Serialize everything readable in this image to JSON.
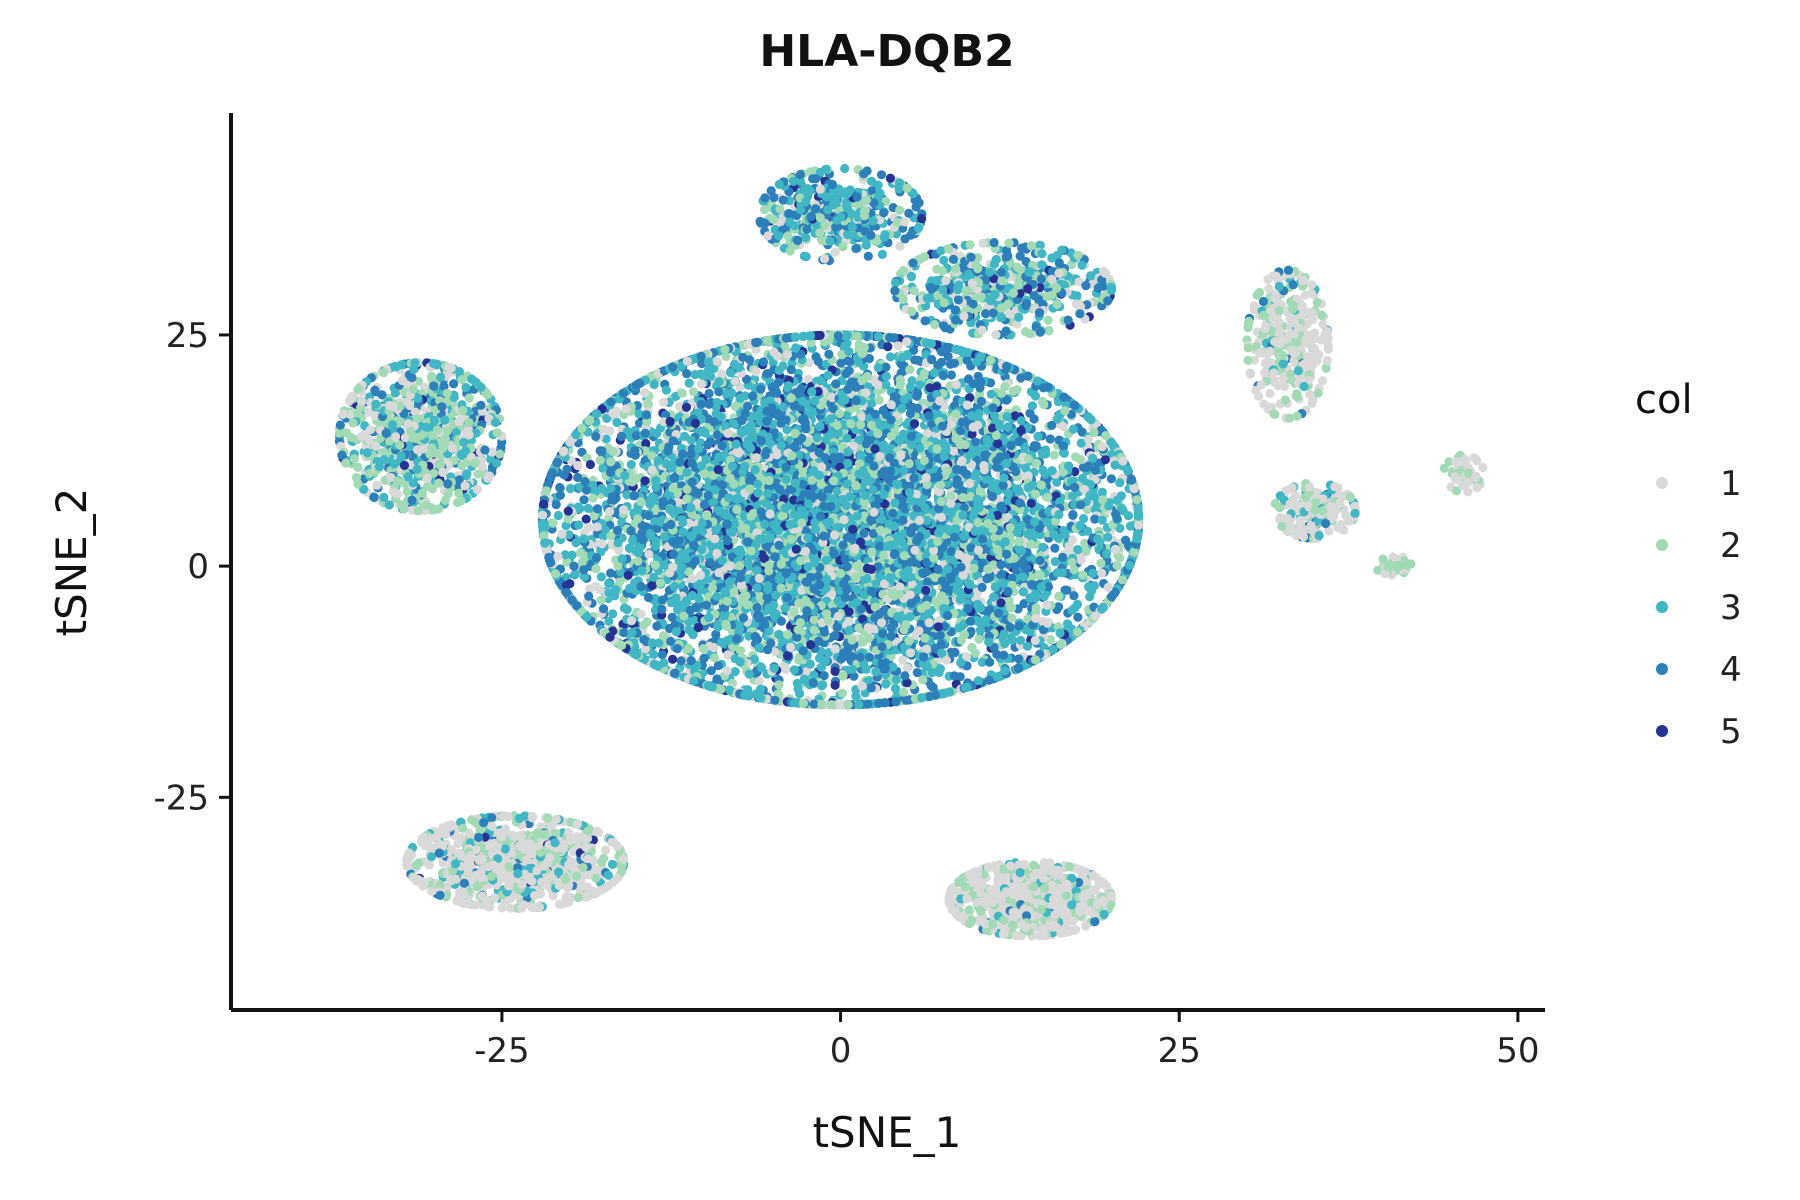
{
  "chart_data": {
    "type": "scatter",
    "title": "HLA-DQB2",
    "xlabel": "tSNE_1",
    "ylabel": "tSNE_2",
    "xlim": [
      -45,
      52
    ],
    "ylim": [
      -48,
      49
    ],
    "x_ticks": [
      -25,
      0,
      25,
      50
    ],
    "y_ticks": [
      -25,
      0,
      25
    ],
    "x_tick_labels": [
      "-25",
      "0",
      "25",
      "50"
    ],
    "y_tick_labels": [
      "-25",
      "0",
      "25"
    ],
    "grid": false,
    "legend": {
      "title": "col",
      "placement": "right",
      "entries": [
        {
          "label": "1",
          "color": "#d9d9d9"
        },
        {
          "label": "2",
          "color": "#a1dab4"
        },
        {
          "label": "3",
          "color": "#41b6c4"
        },
        {
          "label": "4",
          "color": "#2c7fb8"
        },
        {
          "label": "5",
          "color": "#253494"
        }
      ]
    },
    "clusters": [
      {
        "name": "main",
        "center": [
          0,
          5
        ],
        "spread": [
          22,
          20
        ],
        "count": 8000,
        "weights": [
          0.12,
          0.18,
          0.35,
          0.3,
          0.05
        ]
      },
      {
        "name": "upper-left",
        "center": [
          -31,
          14
        ],
        "spread": [
          6,
          8
        ],
        "count": 800,
        "weights": [
          0.25,
          0.3,
          0.25,
          0.17,
          0.03
        ]
      },
      {
        "name": "top-bump",
        "center": [
          0,
          38
        ],
        "spread": [
          6,
          5
        ],
        "count": 400,
        "weights": [
          0.12,
          0.18,
          0.35,
          0.3,
          0.05
        ]
      },
      {
        "name": "upper-right-arm",
        "center": [
          12,
          30
        ],
        "spread": [
          8,
          5
        ],
        "count": 500,
        "weights": [
          0.15,
          0.25,
          0.3,
          0.25,
          0.05
        ]
      },
      {
        "name": "lower-left",
        "center": [
          -24,
          -32
        ],
        "spread": [
          8,
          5
        ],
        "count": 900,
        "weights": [
          0.6,
          0.22,
          0.1,
          0.07,
          0.01
        ]
      },
      {
        "name": "bottom-center",
        "center": [
          14,
          -36
        ],
        "spread": [
          6,
          4
        ],
        "count": 700,
        "weights": [
          0.72,
          0.2,
          0.05,
          0.03,
          0
        ]
      },
      {
        "name": "far-right-top",
        "center": [
          33,
          24
        ],
        "spread": [
          3,
          8
        ],
        "count": 300,
        "weights": [
          0.65,
          0.25,
          0.07,
          0.03,
          0
        ]
      },
      {
        "name": "right-mid",
        "center": [
          35,
          6
        ],
        "spread": [
          3,
          3
        ],
        "count": 180,
        "weights": [
          0.62,
          0.2,
          0.1,
          0.08,
          0
        ]
      },
      {
        "name": "far-right-small",
        "center": [
          46,
          10
        ],
        "spread": [
          1.5,
          2
        ],
        "count": 50,
        "weights": [
          0.5,
          0.5,
          0,
          0,
          0
        ]
      },
      {
        "name": "far-right-tiny",
        "center": [
          41,
          0
        ],
        "spread": [
          1.5,
          1
        ],
        "count": 30,
        "weights": [
          0.5,
          0.5,
          0,
          0,
          0
        ]
      }
    ]
  }
}
